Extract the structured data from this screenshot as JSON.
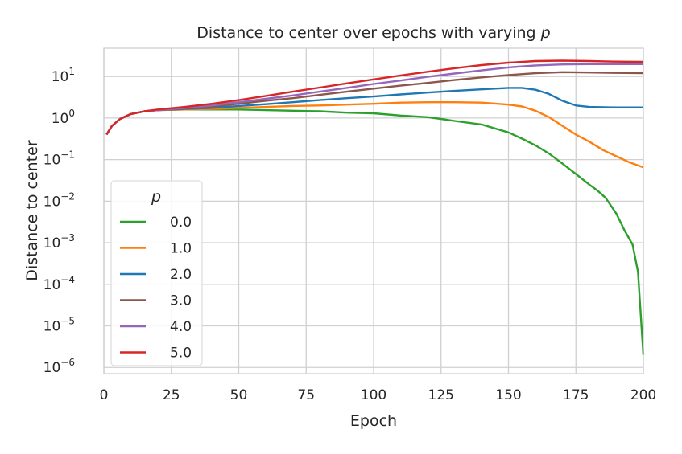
{
  "chart_data": {
    "type": "line",
    "title": "Distance to center over epochs with varying ",
    "title_var": "p",
    "xlabel": "Epoch",
    "ylabel": "Distance to center",
    "xlim": [
      0,
      200
    ],
    "ylim_log10": [
      -6.15,
      1.68
    ],
    "yscale": "log",
    "grid": true,
    "x_ticks": [
      0,
      25,
      50,
      75,
      100,
      125,
      150,
      175,
      200
    ],
    "y_tick_exponents": [
      -6,
      -5,
      -4,
      -3,
      -2,
      -1,
      0,
      1
    ],
    "y_tick_base": "10",
    "legend": {
      "title": "p",
      "placement": "lower-left"
    },
    "series": [
      {
        "name": "0.0",
        "color": "#2ca02c",
        "x": [
          1,
          3,
          6,
          10,
          15,
          20,
          30,
          40,
          50,
          60,
          70,
          80,
          90,
          100,
          110,
          120,
          125,
          130,
          140,
          150,
          155,
          160,
          165,
          170,
          175,
          180,
          183,
          186,
          190,
          193,
          196,
          198,
          200
        ],
        "y": [
          0.4,
          0.65,
          0.95,
          1.25,
          1.45,
          1.55,
          1.6,
          1.6,
          1.6,
          1.55,
          1.5,
          1.45,
          1.35,
          1.3,
          1.15,
          1.05,
          0.95,
          0.85,
          0.7,
          0.45,
          0.32,
          0.22,
          0.14,
          0.08,
          0.045,
          0.025,
          0.018,
          0.012,
          0.005,
          0.002,
          0.0009,
          0.0002,
          2e-06
        ]
      },
      {
        "name": "1.0",
        "color": "#ff7f0e",
        "x": [
          1,
          3,
          6,
          10,
          15,
          20,
          30,
          40,
          50,
          60,
          70,
          80,
          90,
          100,
          110,
          120,
          130,
          140,
          150,
          155,
          160,
          165,
          170,
          175,
          180,
          185,
          190,
          195,
          200
        ],
        "y": [
          0.4,
          0.65,
          0.95,
          1.25,
          1.45,
          1.55,
          1.6,
          1.65,
          1.75,
          1.85,
          1.95,
          2.0,
          2.1,
          2.2,
          2.35,
          2.4,
          2.4,
          2.35,
          2.1,
          1.9,
          1.5,
          1.05,
          0.65,
          0.4,
          0.27,
          0.17,
          0.12,
          0.085,
          0.065
        ]
      },
      {
        "name": "2.0",
        "color": "#1f77b4",
        "x": [
          1,
          3,
          6,
          10,
          15,
          20,
          30,
          40,
          50,
          60,
          70,
          80,
          90,
          100,
          110,
          120,
          130,
          140,
          150,
          155,
          160,
          165,
          170,
          175,
          180,
          190,
          200
        ],
        "y": [
          0.4,
          0.65,
          0.95,
          1.25,
          1.45,
          1.55,
          1.65,
          1.75,
          1.95,
          2.15,
          2.4,
          2.7,
          3.0,
          3.3,
          3.7,
          4.1,
          4.5,
          4.9,
          5.3,
          5.3,
          4.8,
          3.8,
          2.6,
          2.0,
          1.85,
          1.8,
          1.8
        ]
      },
      {
        "name": "3.0",
        "color": "#8c564b",
        "x": [
          1,
          3,
          6,
          10,
          15,
          20,
          30,
          40,
          50,
          60,
          70,
          80,
          90,
          100,
          110,
          120,
          130,
          140,
          150,
          160,
          170,
          180,
          190,
          200
        ],
        "y": [
          0.4,
          0.65,
          0.95,
          1.25,
          1.45,
          1.55,
          1.7,
          1.9,
          2.2,
          2.6,
          3.0,
          3.6,
          4.3,
          5.1,
          6.0,
          7.0,
          8.2,
          9.5,
          10.8,
          12.0,
          12.7,
          12.5,
          12.2,
          12.0
        ]
      },
      {
        "name": "4.0",
        "color": "#9467bd",
        "x": [
          1,
          3,
          6,
          10,
          15,
          20,
          30,
          40,
          50,
          60,
          70,
          80,
          90,
          100,
          110,
          120,
          130,
          140,
          150,
          160,
          170,
          180,
          190,
          200
        ],
        "y": [
          0.4,
          0.65,
          0.95,
          1.25,
          1.45,
          1.55,
          1.75,
          2.0,
          2.4,
          2.9,
          3.5,
          4.3,
          5.3,
          6.6,
          8.0,
          9.8,
          11.8,
          14.0,
          16.5,
          18.5,
          19.5,
          19.8,
          19.8,
          19.8
        ]
      },
      {
        "name": "5.0",
        "color": "#d62728",
        "x": [
          1,
          3,
          6,
          10,
          15,
          20,
          30,
          40,
          50,
          60,
          70,
          80,
          90,
          100,
          110,
          120,
          130,
          140,
          150,
          160,
          170,
          180,
          190,
          200
        ],
        "y": [
          0.4,
          0.65,
          0.95,
          1.25,
          1.45,
          1.6,
          1.85,
          2.2,
          2.7,
          3.4,
          4.3,
          5.4,
          6.8,
          8.5,
          10.6,
          13.0,
          15.8,
          18.8,
          21.5,
          23.5,
          24.0,
          23.5,
          22.8,
          22.5
        ]
      }
    ]
  }
}
